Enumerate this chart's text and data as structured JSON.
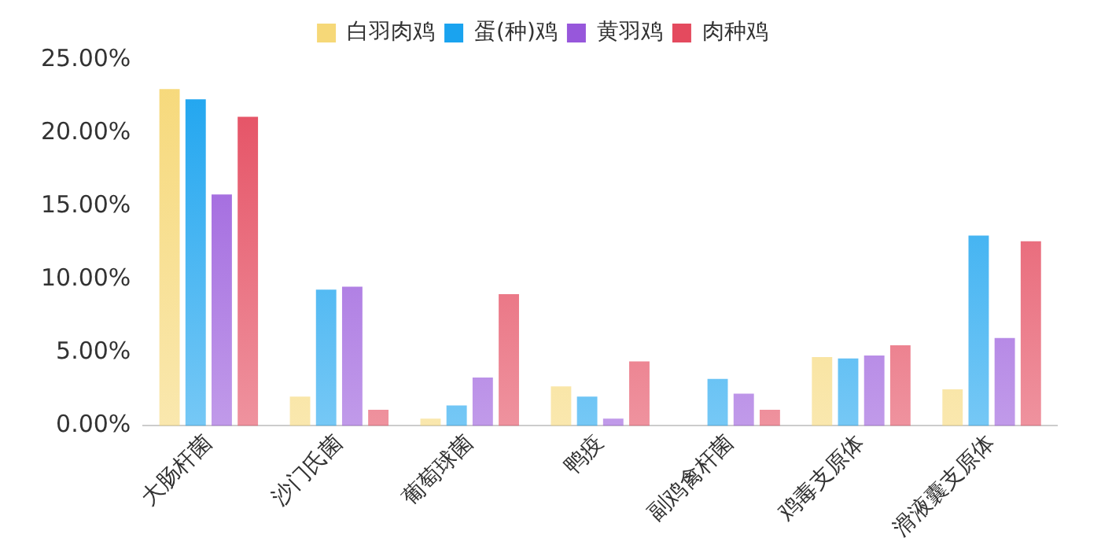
{
  "chart_data": {
    "type": "bar",
    "categories": [
      "大肠杆菌",
      "沙门氏菌",
      "葡萄球菌",
      "鸭疫",
      "副鸡禽杆菌",
      "鸡毒支原体",
      "滑液囊支原体"
    ],
    "series": [
      {
        "name": "白羽肉鸡",
        "color": "#f6d878",
        "values": [
          23.0,
          2.0,
          0.5,
          2.7,
          0,
          4.7,
          2.5
        ]
      },
      {
        "name": "蛋(种)鸡",
        "color": "#1aa3ef",
        "values": [
          22.3,
          9.3,
          1.4,
          2.0,
          3.2,
          4.6,
          13.0
        ]
      },
      {
        "name": "黄羽鸡",
        "color": "#9757db",
        "values": [
          15.8,
          9.5,
          3.3,
          0.5,
          2.2,
          4.8,
          6.0
        ]
      },
      {
        "name": "肉种鸡",
        "color": "#e44a5e",
        "values": [
          21.1,
          1.1,
          9.0,
          4.4,
          1.1,
          5.5,
          12.6
        ]
      }
    ],
    "ylim": [
      0,
      25
    ],
    "yticks": [
      {
        "value": 0,
        "label": "0.00%"
      },
      {
        "value": 5,
        "label": "5.00%"
      },
      {
        "value": 10,
        "label": "10.00%"
      },
      {
        "value": 15,
        "label": "15.00%"
      },
      {
        "value": 20,
        "label": "20.00%"
      },
      {
        "value": 25,
        "label": "25.00%"
      }
    ],
    "grid": false,
    "legend": "top"
  }
}
